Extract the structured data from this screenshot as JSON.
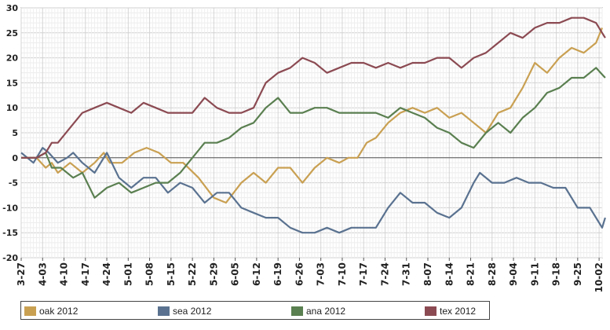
{
  "chart_data": {
    "type": "line",
    "title": "",
    "xlabel": "",
    "ylabel": "",
    "ylim": [
      -20,
      30
    ],
    "yticks": [
      -20,
      -15,
      -10,
      -5,
      0,
      5,
      10,
      15,
      20,
      25,
      30
    ],
    "x_tick_labels": [
      "3-27",
      "4-03",
      "4-10",
      "4-17",
      "4-24",
      "5-01",
      "5-08",
      "5-15",
      "5-22",
      "5-29",
      "6-05",
      "6-12",
      "6-19",
      "6-26",
      "7-03",
      "7-10",
      "7-17",
      "7-24",
      "7-31",
      "8-07",
      "8-14",
      "8-21",
      "8-28",
      "9-04",
      "9-11",
      "9-18",
      "9-25",
      "10-02"
    ],
    "x_range_days": [
      0,
      190
    ],
    "grid": true,
    "legend_position": "bottom",
    "series": [
      {
        "name": "oak 2012",
        "color": "#c9a052",
        "points": [
          [
            0,
            0
          ],
          [
            5,
            0
          ],
          [
            8,
            -2
          ],
          [
            10,
            -1
          ],
          [
            12,
            -3
          ],
          [
            16,
            -1
          ],
          [
            20,
            -3
          ],
          [
            24,
            -1
          ],
          [
            27,
            1
          ],
          [
            29,
            -1
          ],
          [
            33,
            -1
          ],
          [
            37,
            1
          ],
          [
            41,
            2
          ],
          [
            45,
            1
          ],
          [
            49,
            -1
          ],
          [
            53,
            -1
          ],
          [
            58,
            -4
          ],
          [
            63,
            -8
          ],
          [
            67,
            -9
          ],
          [
            72,
            -5
          ],
          [
            76,
            -3
          ],
          [
            80,
            -5
          ],
          [
            84,
            -2
          ],
          [
            88,
            -2
          ],
          [
            92,
            -5
          ],
          [
            96,
            -2
          ],
          [
            100,
            0
          ],
          [
            104,
            -1
          ],
          [
            107,
            0
          ],
          [
            110,
            0
          ],
          [
            113,
            3
          ],
          [
            116,
            4
          ],
          [
            120,
            7
          ],
          [
            124,
            9
          ],
          [
            128,
            10
          ],
          [
            132,
            9
          ],
          [
            136,
            10
          ],
          [
            140,
            8
          ],
          [
            144,
            9
          ],
          [
            148,
            7
          ],
          [
            152,
            5
          ],
          [
            156,
            9
          ],
          [
            160,
            10
          ],
          [
            164,
            14
          ],
          [
            168,
            19
          ],
          [
            172,
            17
          ],
          [
            176,
            20
          ],
          [
            180,
            22
          ],
          [
            184,
            21
          ],
          [
            188,
            23
          ],
          [
            190,
            26
          ]
        ]
      },
      {
        "name": "sea 2012",
        "color": "#5a7290",
        "points": [
          [
            0,
            1
          ],
          [
            4,
            -1
          ],
          [
            7,
            2
          ],
          [
            9,
            1
          ],
          [
            12,
            -1
          ],
          [
            15,
            0
          ],
          [
            17,
            1
          ],
          [
            20,
            -1
          ],
          [
            24,
            -3
          ],
          [
            28,
            1
          ],
          [
            32,
            -4
          ],
          [
            36,
            -6
          ],
          [
            40,
            -4
          ],
          [
            44,
            -4
          ],
          [
            48,
            -7
          ],
          [
            52,
            -5
          ],
          [
            56,
            -6
          ],
          [
            60,
            -9
          ],
          [
            64,
            -7
          ],
          [
            68,
            -7
          ],
          [
            72,
            -10
          ],
          [
            76,
            -11
          ],
          [
            80,
            -12
          ],
          [
            84,
            -12
          ],
          [
            88,
            -14
          ],
          [
            92,
            -15
          ],
          [
            96,
            -15
          ],
          [
            100,
            -14
          ],
          [
            104,
            -15
          ],
          [
            108,
            -14
          ],
          [
            112,
            -14
          ],
          [
            116,
            -14
          ],
          [
            120,
            -10
          ],
          [
            124,
            -7
          ],
          [
            128,
            -9
          ],
          [
            132,
            -9
          ],
          [
            136,
            -11
          ],
          [
            140,
            -12
          ],
          [
            144,
            -10
          ],
          [
            148,
            -5
          ],
          [
            150,
            -3
          ],
          [
            154,
            -5
          ],
          [
            158,
            -5
          ],
          [
            162,
            -4
          ],
          [
            166,
            -5
          ],
          [
            170,
            -5
          ],
          [
            174,
            -6
          ],
          [
            178,
            -6
          ],
          [
            182,
            -10
          ],
          [
            186,
            -10
          ],
          [
            190,
            -14
          ],
          [
            191,
            -12
          ]
        ]
      },
      {
        "name": "ana 2012",
        "color": "#5a7f50",
        "points": [
          [
            0,
            0
          ],
          [
            5,
            0
          ],
          [
            8,
            1
          ],
          [
            10,
            -2
          ],
          [
            13,
            -2
          ],
          [
            17,
            -4
          ],
          [
            20,
            -3
          ],
          [
            24,
            -8
          ],
          [
            28,
            -6
          ],
          [
            32,
            -5
          ],
          [
            36,
            -7
          ],
          [
            40,
            -6
          ],
          [
            44,
            -5
          ],
          [
            48,
            -5
          ],
          [
            52,
            -3
          ],
          [
            56,
            0
          ],
          [
            60,
            3
          ],
          [
            64,
            3
          ],
          [
            68,
            4
          ],
          [
            72,
            6
          ],
          [
            76,
            7
          ],
          [
            80,
            10
          ],
          [
            84,
            12
          ],
          [
            88,
            9
          ],
          [
            92,
            9
          ],
          [
            96,
            10
          ],
          [
            100,
            10
          ],
          [
            104,
            9
          ],
          [
            108,
            9
          ],
          [
            112,
            9
          ],
          [
            116,
            9
          ],
          [
            120,
            8
          ],
          [
            124,
            10
          ],
          [
            128,
            9
          ],
          [
            132,
            8
          ],
          [
            136,
            6
          ],
          [
            140,
            5
          ],
          [
            144,
            3
          ],
          [
            148,
            2
          ],
          [
            152,
            5
          ],
          [
            156,
            7
          ],
          [
            160,
            5
          ],
          [
            164,
            8
          ],
          [
            168,
            10
          ],
          [
            172,
            13
          ],
          [
            176,
            14
          ],
          [
            180,
            16
          ],
          [
            184,
            16
          ],
          [
            188,
            18
          ],
          [
            191,
            16
          ]
        ]
      },
      {
        "name": "tex 2012",
        "color": "#8b4a52",
        "points": [
          [
            0,
            0
          ],
          [
            5,
            0
          ],
          [
            8,
            1
          ],
          [
            10,
            3
          ],
          [
            12,
            3
          ],
          [
            16,
            6
          ],
          [
            20,
            9
          ],
          [
            24,
            10
          ],
          [
            28,
            11
          ],
          [
            32,
            10
          ],
          [
            36,
            9
          ],
          [
            40,
            11
          ],
          [
            44,
            10
          ],
          [
            48,
            9
          ],
          [
            52,
            9
          ],
          [
            56,
            9
          ],
          [
            60,
            12
          ],
          [
            64,
            10
          ],
          [
            68,
            9
          ],
          [
            72,
            9
          ],
          [
            76,
            10
          ],
          [
            80,
            15
          ],
          [
            84,
            17
          ],
          [
            88,
            18
          ],
          [
            92,
            20
          ],
          [
            96,
            19
          ],
          [
            100,
            17
          ],
          [
            104,
            18
          ],
          [
            108,
            19
          ],
          [
            112,
            19
          ],
          [
            116,
            18
          ],
          [
            120,
            19
          ],
          [
            124,
            18
          ],
          [
            128,
            19
          ],
          [
            132,
            19
          ],
          [
            136,
            20
          ],
          [
            140,
            20
          ],
          [
            144,
            18
          ],
          [
            148,
            20
          ],
          [
            152,
            21
          ],
          [
            156,
            23
          ],
          [
            160,
            25
          ],
          [
            164,
            24
          ],
          [
            168,
            26
          ],
          [
            172,
            27
          ],
          [
            176,
            27
          ],
          [
            180,
            28
          ],
          [
            184,
            28
          ],
          [
            188,
            27
          ],
          [
            191,
            24
          ]
        ]
      }
    ]
  }
}
